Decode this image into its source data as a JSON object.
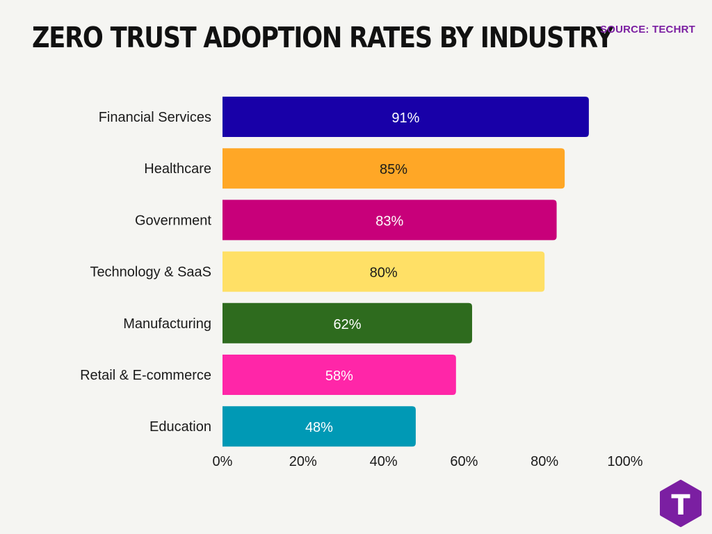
{
  "title": "ZERO TRUST ADOPTION RATES BY INDUSTRY",
  "source": "SOURCE: TECHRT",
  "logo": {
    "letter": "T",
    "color": "#7b1fa2"
  },
  "colors": {
    "accent": "#7b1fa2",
    "title": "#111111",
    "background": "#f5f5f2"
  },
  "chart_data": {
    "type": "bar",
    "orientation": "horizontal",
    "categories": [
      "Financial Services",
      "Healthcare",
      "Government",
      "Technology & SaaS",
      "Manufacturing",
      "Retail & E-commerce",
      "Education"
    ],
    "values": [
      91,
      85,
      83,
      80,
      62,
      58,
      48
    ],
    "data_labels": [
      "91%",
      "85%",
      "83%",
      "80%",
      "62%",
      "58%",
      "48%"
    ],
    "bar_colors": [
      "#1800a8",
      "#ffa726",
      "#c8007a",
      "#ffe066",
      "#2e6b1e",
      "#ff26a8",
      "#0099b5"
    ],
    "label_colors": [
      "#ffffff",
      "#1a1a1a",
      "#ffffff",
      "#1a1a1a",
      "#ffffff",
      "#ffffff",
      "#ffffff"
    ],
    "xlim": [
      0,
      100
    ],
    "xticks": [
      0,
      20,
      40,
      60,
      80,
      100
    ],
    "xtick_labels": [
      "0%",
      "20%",
      "40%",
      "60%",
      "80%",
      "100%"
    ],
    "grid": false,
    "legend": "none"
  }
}
